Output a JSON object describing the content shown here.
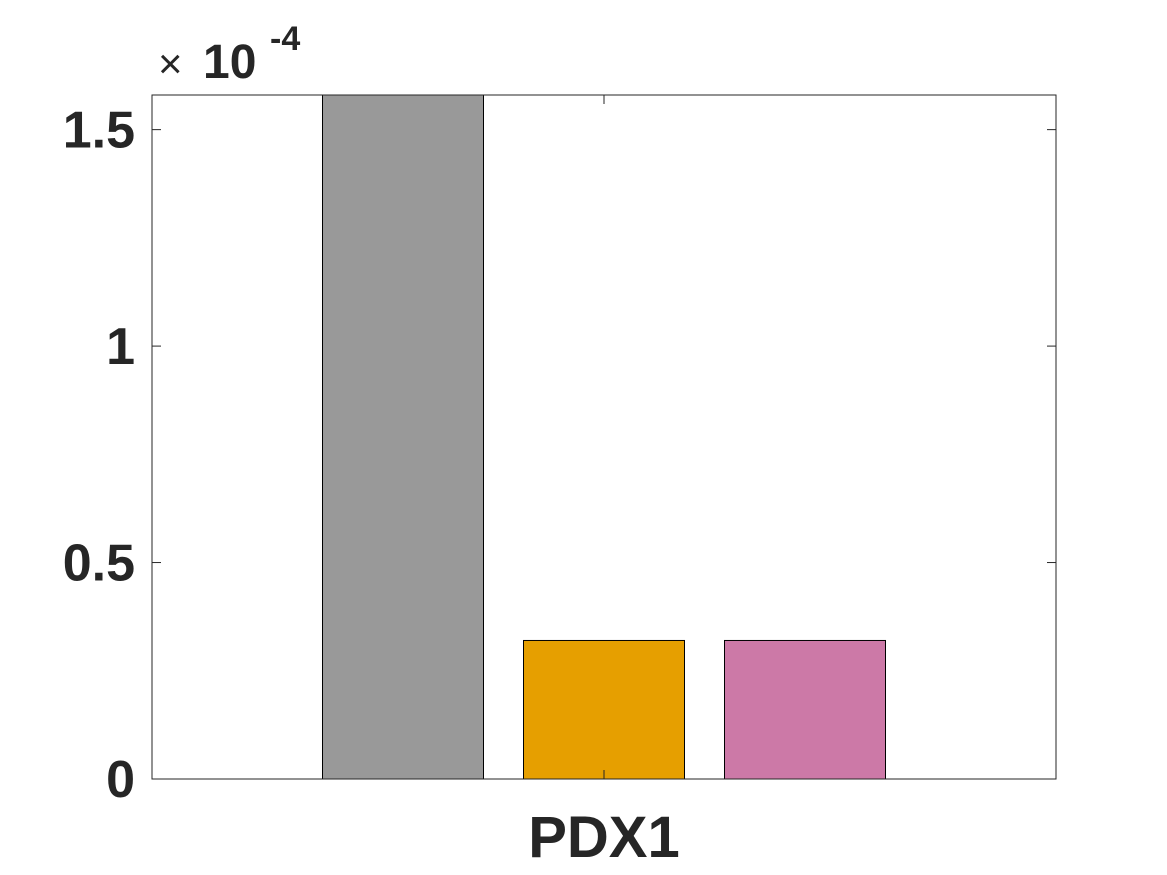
{
  "chart_data": {
    "type": "bar",
    "categories": [
      "PDX1"
    ],
    "series": [
      {
        "values": [
          1.62
        ],
        "color": "#999999"
      },
      {
        "values": [
          0.32
        ],
        "color": "#E69F00"
      },
      {
        "values": [
          0.32
        ],
        "color": "#CC79A7"
      }
    ],
    "ylim": [
      0,
      1.58
    ],
    "yticks": [
      0,
      0.5,
      1,
      1.5
    ],
    "ytick_labels": [
      "0",
      "0.5",
      "1",
      "1.5"
    ],
    "y_exponent_label": {
      "times": "×",
      "base": "10",
      "exponent": "-4"
    },
    "xlabel": "",
    "ylabel": "",
    "title": "",
    "grid": false,
    "legend": "none",
    "box": true
  }
}
